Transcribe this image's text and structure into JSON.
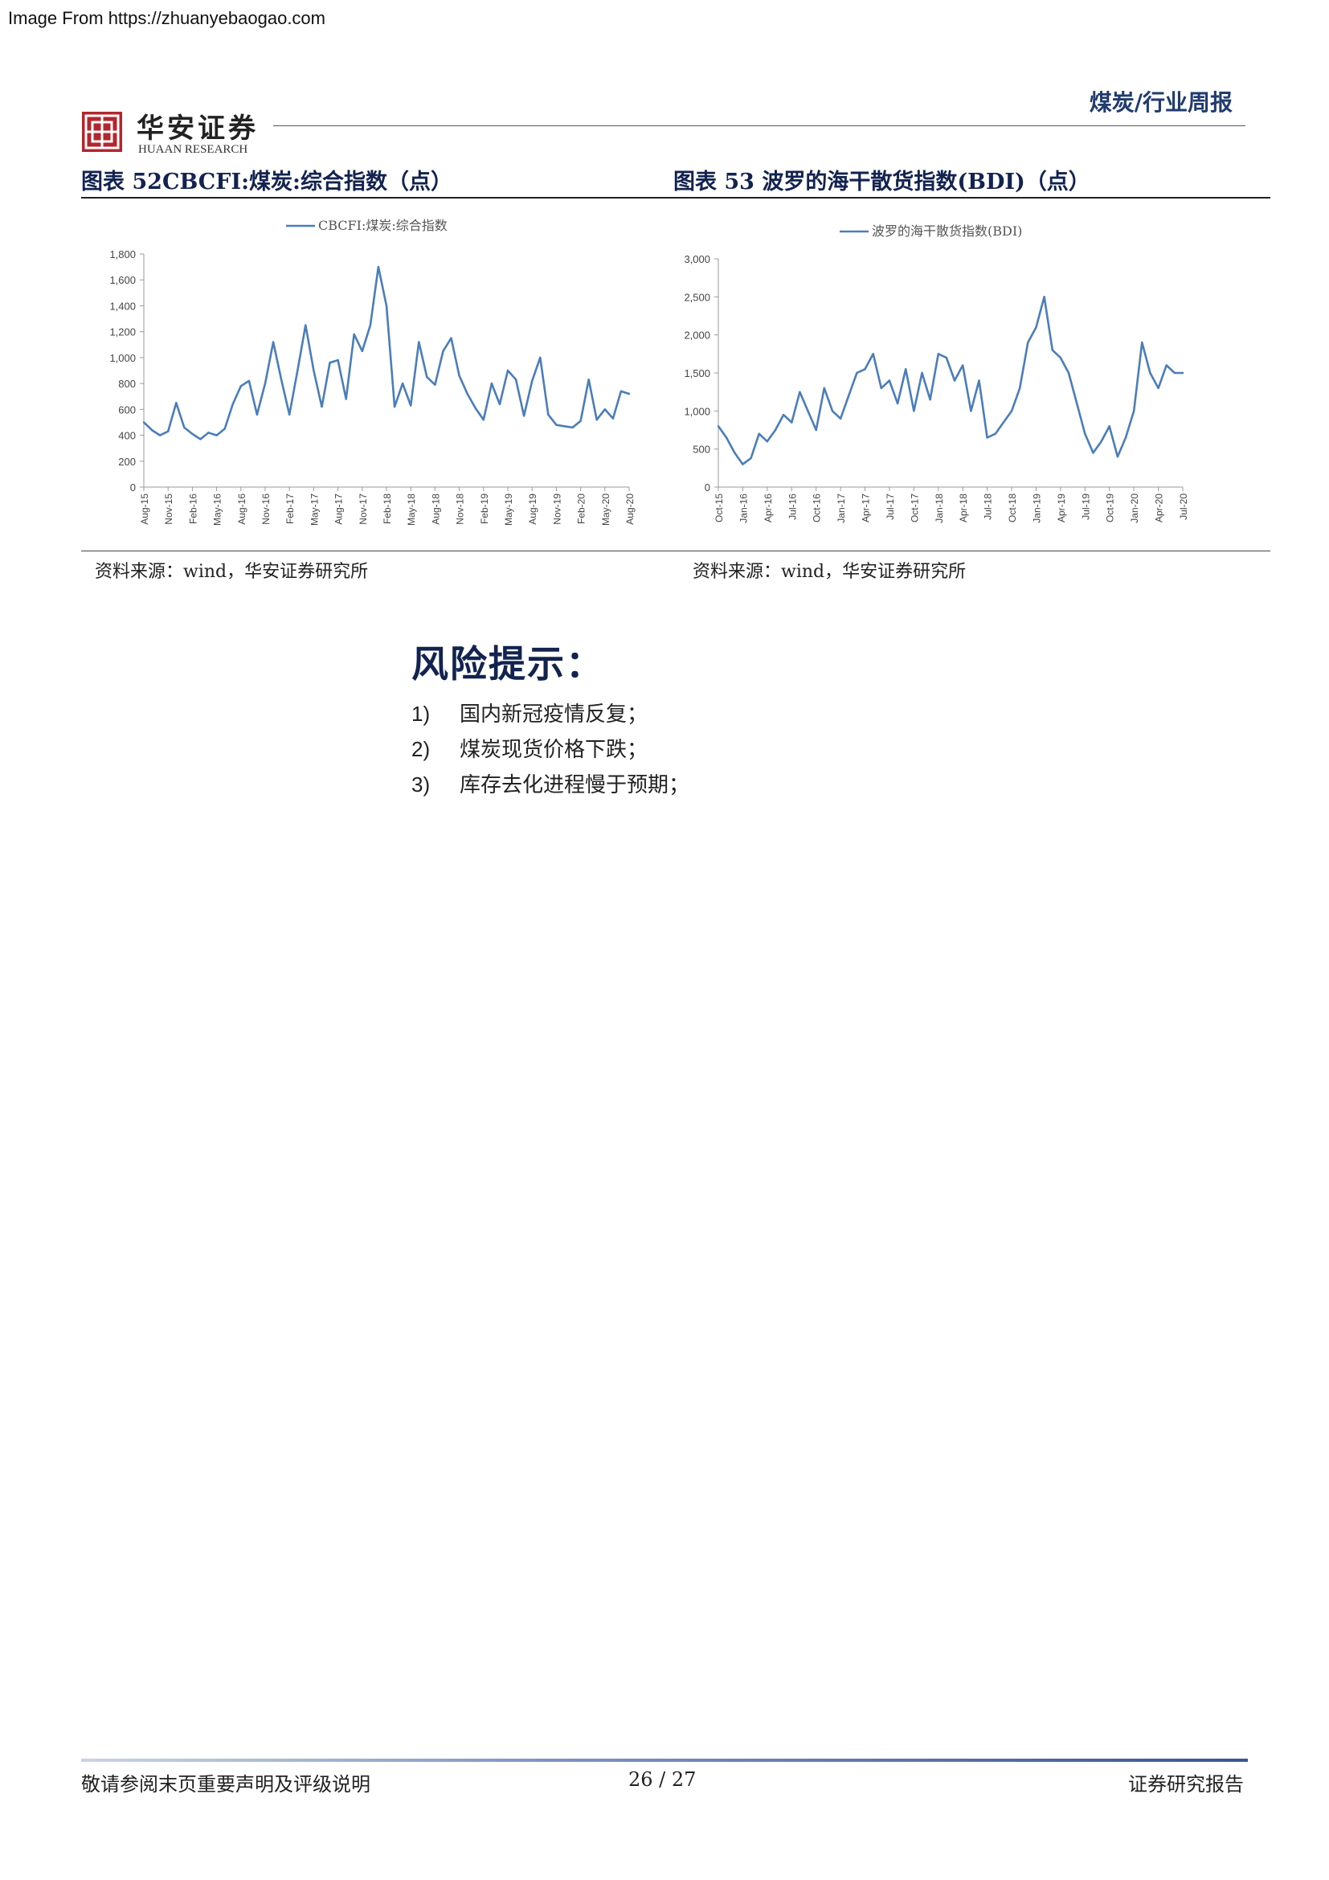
{
  "watermark": "Image From https://zhuanyebaogao.com",
  "header": {
    "logo_cn": "华安证券",
    "logo_en": "HUAAN RESEARCH",
    "report_type": "煤炭/行业周报"
  },
  "figures": [
    {
      "title": "图表 52CBCFI:煤炭:综合指数（点）",
      "source": "资料来源：wind，华安证券研究所"
    },
    {
      "title": "图表 53 波罗的海干散货指数(BDI)（点）",
      "source": "资料来源：wind，华安证券研究所"
    }
  ],
  "chart_data": [
    {
      "type": "line",
      "title": "",
      "xlabel": "",
      "ylabel": "",
      "ylim": [
        0,
        1800
      ],
      "yticks": [
        "0",
        "200",
        "400",
        "600",
        "800",
        "1,000",
        "1,200",
        "1,400",
        "1,600",
        "1,800"
      ],
      "xticks": [
        "Aug-15",
        "Nov-15",
        "Feb-16",
        "May-16",
        "Aug-16",
        "Nov-16",
        "Feb-17",
        "May-17",
        "Aug-17",
        "Nov-17",
        "Feb-18",
        "May-18",
        "Aug-18",
        "Nov-18",
        "Feb-19",
        "May-19",
        "Aug-19",
        "Nov-19",
        "Feb-20",
        "May-20",
        "Aug-20"
      ],
      "legend": "top-center",
      "color": "#4a7ebb",
      "series": [
        {
          "name": "CBCFI:煤炭:综合指数",
          "x": [
            0,
            1,
            2,
            3,
            4,
            5,
            6,
            7,
            8,
            9,
            10,
            11,
            12,
            13,
            14,
            15,
            16,
            17,
            18,
            19,
            20,
            21,
            22,
            23,
            24,
            25,
            26,
            27,
            28,
            29,
            30,
            31,
            32,
            33,
            34,
            35,
            36,
            37,
            38,
            39,
            40,
            41,
            42,
            43,
            44,
            45,
            46,
            47,
            48,
            49,
            50,
            51,
            52,
            53,
            54,
            55,
            56,
            57,
            58,
            59,
            60
          ],
          "values": [
            500,
            440,
            400,
            430,
            650,
            460,
            410,
            370,
            420,
            400,
            450,
            640,
            780,
            820,
            560,
            800,
            1120,
            830,
            560,
            900,
            1250,
            900,
            620,
            960,
            980,
            680,
            1180,
            1050,
            1250,
            1700,
            1400,
            620,
            800,
            630,
            1120,
            850,
            790,
            1050,
            1150,
            860,
            720,
            610,
            520,
            800,
            640,
            900,
            830,
            550,
            820,
            1000,
            560,
            480,
            470,
            460,
            510,
            830,
            520,
            600,
            530,
            740,
            720
          ]
        }
      ]
    },
    {
      "type": "line",
      "title": "",
      "xlabel": "",
      "ylabel": "",
      "ylim": [
        0,
        3000
      ],
      "yticks": [
        "0",
        "500",
        "1,000",
        "1,500",
        "2,000",
        "2,500",
        "3,000"
      ],
      "xticks": [
        "Oct-15",
        "Jan-16",
        "Apr-16",
        "Jul-16",
        "Oct-16",
        "Jan-17",
        "Apr-17",
        "Jul-17",
        "Oct-17",
        "Jan-18",
        "Apr-18",
        "Jul-18",
        "Oct-18",
        "Jan-19",
        "Apr-19",
        "Jul-19",
        "Oct-19",
        "Jan-20",
        "Apr-20",
        "Jul-20"
      ],
      "legend": "top-center",
      "color": "#4a7ebb",
      "series": [
        {
          "name": "波罗的海干散货指数(BDI)",
          "x": [
            0,
            1,
            2,
            3,
            4,
            5,
            6,
            7,
            8,
            9,
            10,
            11,
            12,
            13,
            14,
            15,
            16,
            17,
            18,
            19,
            20,
            21,
            22,
            23,
            24,
            25,
            26,
            27,
            28,
            29,
            30,
            31,
            32,
            33,
            34,
            35,
            36,
            37,
            38,
            39,
            40,
            41,
            42,
            43,
            44,
            45,
            46,
            47,
            48,
            49,
            50,
            51,
            52,
            53,
            54,
            55,
            56,
            57
          ],
          "values": [
            800,
            650,
            450,
            300,
            380,
            700,
            600,
            750,
            950,
            850,
            1250,
            1000,
            750,
            1300,
            1000,
            900,
            1200,
            1500,
            1550,
            1750,
            1300,
            1400,
            1100,
            1550,
            1000,
            1500,
            1150,
            1750,
            1700,
            1400,
            1600,
            1000,
            1400,
            650,
            700,
            850,
            1000,
            1300,
            1900,
            2100,
            2500,
            1800,
            1700,
            1500,
            1100,
            700,
            450,
            600,
            800,
            400,
            650,
            1000,
            1900,
            1500,
            1300,
            1600,
            1500,
            1500
          ]
        }
      ]
    }
  ],
  "risk": {
    "title": "风险提示：",
    "items": [
      {
        "num": "1)",
        "text": "国内新冠疫情反复；"
      },
      {
        "num": "2)",
        "text": "煤炭现货价格下跌；"
      },
      {
        "num": "3)",
        "text": "库存去化进程慢于预期；"
      }
    ]
  },
  "footer": {
    "left": "敬请参阅末页重要声明及评级说明",
    "page": "26 / 27",
    "right": "证券研究报告"
  }
}
